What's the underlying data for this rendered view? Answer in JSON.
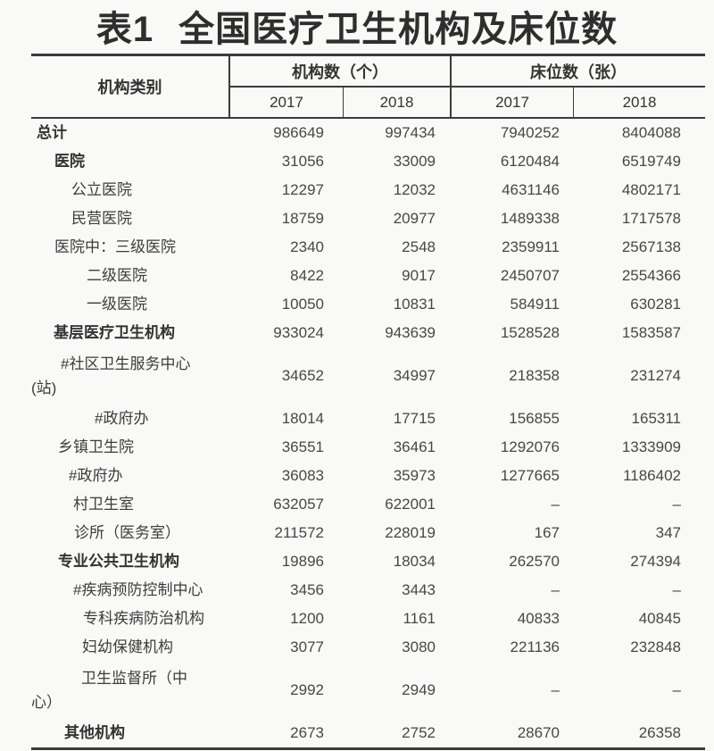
{
  "title": {
    "prefix": "表1",
    "main": "全国医疗卫生机构及床位数"
  },
  "table": {
    "header": {
      "category": "机构类别",
      "group_institutions": "机构数（个）",
      "group_beds": "床位数（张）",
      "years": [
        "2017",
        "2018",
        "2017",
        "2018"
      ]
    },
    "rows": [
      {
        "label": "总计",
        "bold": true,
        "indent": 6,
        "values": [
          "986649",
          "997434",
          "7940252",
          "8404088"
        ]
      },
      {
        "label": "医院",
        "bold": true,
        "indent": 26,
        "values": [
          "31056",
          "33009",
          "6120484",
          "6519749"
        ]
      },
      {
        "label": "公立医院",
        "bold": false,
        "indent": 45,
        "values": [
          "12297",
          "12032",
          "4631146",
          "4802171"
        ]
      },
      {
        "label": "民营医院",
        "bold": false,
        "indent": 45,
        "values": [
          "18759",
          "20977",
          "1489338",
          "1717578"
        ]
      },
      {
        "label": "医院中：三级医院",
        "bold": false,
        "indent": 26,
        "values": [
          "2340",
          "2548",
          "2359911",
          "2567138"
        ]
      },
      {
        "label": "二级医院",
        "bold": false,
        "indent": 62,
        "values": [
          "8422",
          "9017",
          "2450707",
          "2554366"
        ]
      },
      {
        "label": "一级医院",
        "bold": false,
        "indent": 62,
        "values": [
          "10050",
          "10831",
          "584911",
          "630281"
        ]
      },
      {
        "label": "基层医疗卫生机构",
        "bold": true,
        "indent": 25,
        "values": [
          "933024",
          "943639",
          "1528528",
          "1583587"
        ]
      },
      {
        "label": "#社区卫生服务中心",
        "label2": "(站)",
        "bold": false,
        "indent": 33,
        "values": [
          "34652",
          "34997",
          "218358",
          "231274"
        ]
      },
      {
        "label": "#政府办",
        "bold": false,
        "indent": 71,
        "values": [
          "18014",
          "17715",
          "156855",
          "165311"
        ]
      },
      {
        "label": "乡镇卫生院",
        "bold": false,
        "indent": 30,
        "values": [
          "36551",
          "36461",
          "1292076",
          "1333909"
        ]
      },
      {
        "label": "#政府办",
        "bold": false,
        "indent": 42,
        "values": [
          "36083",
          "35973",
          "1277665",
          "1186402"
        ]
      },
      {
        "label": "村卫生室",
        "bold": false,
        "indent": 47,
        "values": [
          "632057",
          "622001",
          "–",
          "–"
        ]
      },
      {
        "label": "诊所（医务室）",
        "bold": false,
        "indent": 48,
        "values": [
          "211572",
          "228019",
          "167",
          "347"
        ]
      },
      {
        "label": "专业公共卫生机构",
        "bold": true,
        "indent": 30,
        "values": [
          "19896",
          "18034",
          "262570",
          "274394"
        ]
      },
      {
        "label": "#疾病预防控制中心",
        "bold": false,
        "indent": 47,
        "values": [
          "3456",
          "3443",
          "–",
          "–"
        ]
      },
      {
        "label": "专科疾病防治机构",
        "bold": false,
        "indent": 58,
        "values": [
          "1200",
          "1161",
          "40833",
          "40845"
        ]
      },
      {
        "label": "妇幼保健机构",
        "bold": false,
        "indent": 57,
        "values": [
          "3077",
          "3080",
          "221136",
          "232848"
        ]
      },
      {
        "label": "卫生监督所（中",
        "label2": "心）",
        "bold": false,
        "indent": 56,
        "values": [
          "2992",
          "2949",
          "–",
          "–"
        ]
      },
      {
        "label": "其他机构",
        "bold": true,
        "indent": 37,
        "values": [
          "2673",
          "2752",
          "28670",
          "26358"
        ]
      }
    ]
  }
}
